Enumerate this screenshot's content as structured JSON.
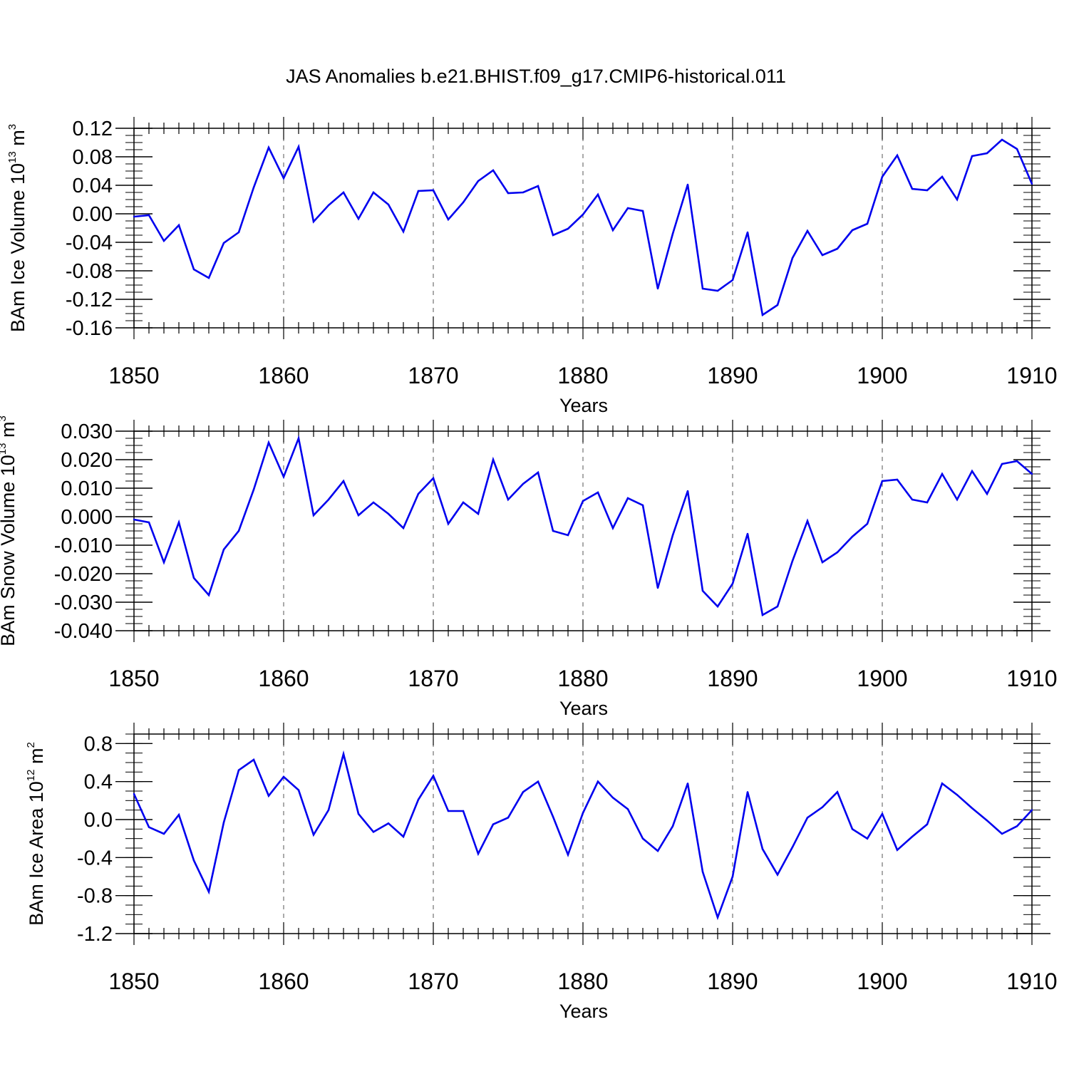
{
  "chart_data": {
    "type": "line",
    "title": "JAS Anomalies b.e21.BHIST.f09_g17.CMIP6-historical.011",
    "series_color": "#0000ee",
    "panels": [
      {
        "name": "ice-volume",
        "ylabel_main": "BAm Ice Volume 10",
        "ylabel_exp": "13",
        "ylabel_unit": " m",
        "ylabel_unit_exp": "3",
        "xlabel": "Years",
        "xlim": [
          1850,
          1910
        ],
        "ylim": [
          -0.16,
          0.12
        ],
        "ymax_box": 0.12,
        "yticks": [
          -0.16,
          -0.12,
          -0.08,
          -0.04,
          0.0,
          0.04,
          0.08,
          0.12
        ],
        "ytick_labels": [
          "-0.16",
          "-0.12",
          "-0.08",
          "-0.04",
          "0.00",
          "0.04",
          "0.08",
          "0.12"
        ],
        "yminor_step": 0.01,
        "xticks": [
          1850,
          1860,
          1870,
          1880,
          1890,
          1900,
          1910
        ],
        "xtick_labels": [
          "1850",
          "1860",
          "1870",
          "1880",
          "1890",
          "1900",
          "1910"
        ],
        "x": [
          1850,
          1851,
          1852,
          1853,
          1854,
          1855,
          1856,
          1857,
          1858,
          1859,
          1860,
          1861,
          1862,
          1863,
          1864,
          1865,
          1866,
          1867,
          1868,
          1869,
          1870,
          1871,
          1872,
          1873,
          1874,
          1875,
          1876,
          1877,
          1878,
          1879,
          1880,
          1881,
          1882,
          1883,
          1884,
          1885,
          1886,
          1887,
          1888,
          1889,
          1890,
          1891,
          1892,
          1893,
          1894,
          1895,
          1896,
          1897,
          1898,
          1899,
          1900,
          1901,
          1902,
          1903,
          1904,
          1905,
          1906,
          1907,
          1908,
          1909,
          1910
        ],
        "values": [
          -0.004,
          -0.002,
          -0.038,
          -0.016,
          -0.078,
          -0.09,
          -0.041,
          -0.026,
          0.037,
          0.093,
          0.05,
          0.094,
          -0.011,
          0.012,
          0.03,
          -0.007,
          0.03,
          0.013,
          -0.025,
          0.032,
          0.033,
          -0.008,
          0.016,
          0.046,
          0.061,
          0.029,
          0.03,
          0.039,
          -0.03,
          -0.021,
          -0.001,
          0.027,
          -0.023,
          0.008,
          0.004,
          -0.105,
          -0.028,
          0.041,
          -0.105,
          -0.108,
          -0.093,
          -0.026,
          -0.142,
          -0.128,
          -0.062,
          -0.024,
          -0.058,
          -0.049,
          -0.023,
          -0.014,
          0.052,
          0.082,
          0.035,
          0.033,
          0.052,
          0.02,
          0.081,
          0.085,
          0.104,
          0.091,
          0.042
        ]
      },
      {
        "name": "snow-volume",
        "ylabel_main": "BAm Snow Volume 10",
        "ylabel_exp": "13",
        "ylabel_unit": " m",
        "ylabel_unit_exp": "3",
        "xlabel": "Years",
        "xlim": [
          1850,
          1910
        ],
        "ylim": [
          -0.04,
          0.03
        ],
        "ymax_box": 0.03,
        "yticks": [
          -0.04,
          -0.03,
          -0.02,
          -0.01,
          0.0,
          0.01,
          0.02,
          0.03
        ],
        "ytick_labels": [
          "-0.040",
          "-0.030",
          "-0.020",
          "-0.010",
          "0.000",
          "0.010",
          "0.020",
          "0.030"
        ],
        "yminor_step": 0.0025,
        "xticks": [
          1850,
          1860,
          1870,
          1880,
          1890,
          1900,
          1910
        ],
        "xtick_labels": [
          "1850",
          "1860",
          "1870",
          "1880",
          "1890",
          "1900",
          "1910"
        ],
        "x": [
          1850,
          1851,
          1852,
          1853,
          1854,
          1855,
          1856,
          1857,
          1858,
          1859,
          1860,
          1861,
          1862,
          1863,
          1864,
          1865,
          1866,
          1867,
          1868,
          1869,
          1870,
          1871,
          1872,
          1873,
          1874,
          1875,
          1876,
          1877,
          1878,
          1879,
          1880,
          1881,
          1882,
          1883,
          1884,
          1885,
          1886,
          1887,
          1888,
          1889,
          1890,
          1891,
          1892,
          1893,
          1894,
          1895,
          1896,
          1897,
          1898,
          1899,
          1900,
          1901,
          1902,
          1903,
          1904,
          1905,
          1906,
          1907,
          1908,
          1909,
          1910
        ],
        "values": [
          -0.001,
          -0.002,
          -0.016,
          -0.002,
          -0.0215,
          -0.0275,
          -0.0115,
          -0.005,
          0.0095,
          0.026,
          0.014,
          0.0275,
          0.0005,
          0.006,
          0.0125,
          0.0005,
          0.005,
          0.001,
          -0.004,
          0.008,
          0.0135,
          -0.0025,
          0.005,
          0.001,
          0.02,
          0.006,
          0.0115,
          0.0155,
          -0.005,
          -0.0065,
          0.0055,
          0.0085,
          -0.004,
          0.0065,
          0.004,
          -0.025,
          -0.0065,
          0.009,
          -0.026,
          -0.0315,
          -0.0235,
          -0.006,
          -0.0345,
          -0.0315,
          -0.0155,
          -0.0015,
          -0.016,
          -0.0125,
          -0.007,
          -0.0025,
          0.0125,
          0.013,
          0.006,
          0.005,
          0.015,
          0.006,
          0.016,
          0.008,
          0.0185,
          0.0195,
          0.015
        ]
      },
      {
        "name": "ice-area",
        "ylabel_main": "BAm Ice Area 10",
        "ylabel_exp": "12",
        "ylabel_unit": " m",
        "ylabel_unit_exp": "2",
        "xlabel": "Years",
        "xlim": [
          1850,
          1910
        ],
        "ylim": [
          -1.2,
          0.9
        ],
        "ymax_box": 0.9,
        "yticks": [
          -1.2,
          -0.8,
          -0.4,
          0.0,
          0.4,
          0.8
        ],
        "ytick_labels": [
          "-1.2",
          "-0.8",
          "-0.4",
          "0.0",
          "0.4",
          "0.8"
        ],
        "yminor_step": 0.1,
        "xticks": [
          1850,
          1860,
          1870,
          1880,
          1890,
          1900,
          1910
        ],
        "xtick_labels": [
          "1850",
          "1860",
          "1870",
          "1880",
          "1890",
          "1900",
          "1910"
        ],
        "x": [
          1850,
          1851,
          1852,
          1853,
          1854,
          1855,
          1856,
          1857,
          1858,
          1859,
          1860,
          1861,
          1862,
          1863,
          1864,
          1865,
          1866,
          1867,
          1868,
          1869,
          1870,
          1871,
          1872,
          1873,
          1874,
          1875,
          1876,
          1877,
          1878,
          1879,
          1880,
          1881,
          1882,
          1883,
          1884,
          1885,
          1886,
          1887,
          1888,
          1889,
          1890,
          1891,
          1892,
          1893,
          1894,
          1895,
          1896,
          1897,
          1898,
          1899,
          1900,
          1901,
          1902,
          1903,
          1904,
          1905,
          1906,
          1907,
          1908,
          1909,
          1910
        ],
        "values": [
          0.27,
          -0.08,
          -0.15,
          0.05,
          -0.43,
          -0.76,
          -0.03,
          0.52,
          0.63,
          0.25,
          0.45,
          0.31,
          -0.16,
          0.1,
          0.69,
          0.06,
          -0.13,
          -0.04,
          -0.18,
          0.21,
          0.46,
          0.09,
          0.09,
          -0.36,
          -0.05,
          0.02,
          0.29,
          0.4,
          0.03,
          -0.37,
          0.07,
          0.4,
          0.23,
          0.11,
          -0.2,
          -0.33,
          -0.07,
          0.38,
          -0.55,
          -1.03,
          -0.6,
          0.29,
          -0.31,
          -0.58,
          -0.29,
          0.02,
          0.13,
          0.29,
          -0.1,
          -0.2,
          0.06,
          -0.32,
          -0.18,
          -0.05,
          0.38,
          0.26,
          0.12,
          -0.01,
          -0.15,
          -0.07,
          0.1
        ]
      }
    ]
  }
}
